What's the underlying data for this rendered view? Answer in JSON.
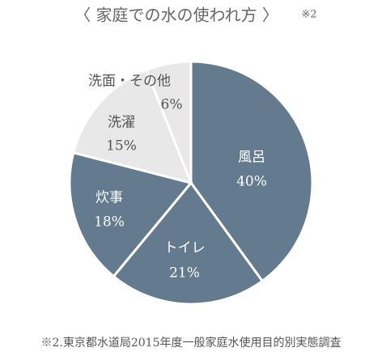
{
  "chart_data": {
    "type": "pie",
    "title": "〈 家庭での水の使われ方 〉",
    "title_note": "※2",
    "categories": [
      "風呂",
      "トイレ",
      "炊事",
      "洗濯",
      "洗面・その他"
    ],
    "values": [
      40,
      21,
      18,
      15,
      6
    ],
    "value_labels": [
      "40%",
      "21%",
      "18%",
      "15%",
      "6%"
    ],
    "colors": [
      "#647a8e",
      "#647a8e",
      "#647a8e",
      "#e8e8e8",
      "#e8e8e8"
    ],
    "label_colors": [
      "#ffffff",
      "#ffffff",
      "#ffffff",
      "#555555",
      "#555555"
    ],
    "source": "※2.東京都水道局2015年度一般家庭水使用目的別実態調査"
  }
}
